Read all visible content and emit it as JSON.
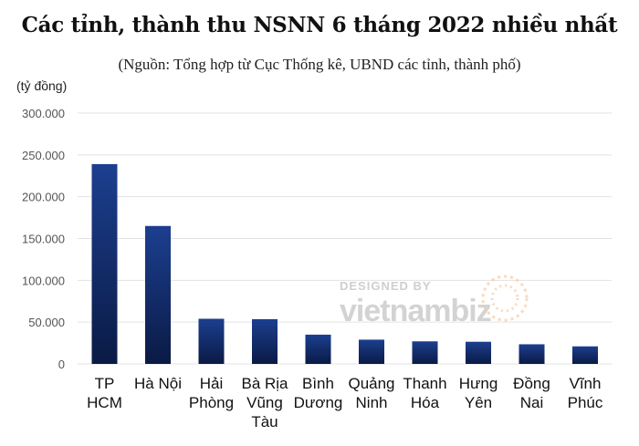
{
  "chart_data": {
    "type": "bar",
    "title": "Các tỉnh, thành thu NSNN 6 tháng 2022 nhiều nhất",
    "subtitle": "(Nguồn: Tổng hợp từ Cục Thống kê, UBND các tỉnh, thành phố)",
    "ylabel": "(tỷ đồng)",
    "ylim": [
      0,
      300000
    ],
    "yticks": [
      0,
      50000,
      100000,
      150000,
      200000,
      250000,
      300000
    ],
    "ytick_labels": [
      "0",
      "50.000",
      "100.000",
      "150.000",
      "200.000",
      "250.000",
      "300.000"
    ],
    "grid": true,
    "categories": [
      [
        "TP",
        "HCM"
      ],
      [
        "Hà Nội"
      ],
      [
        "Hải",
        "Phòng"
      ],
      [
        "Bà Rịa",
        "Vũng",
        "Tàu"
      ],
      [
        "Bình",
        "Dương"
      ],
      [
        "Quảng",
        "Ninh"
      ],
      [
        "Thanh",
        "Hóa"
      ],
      [
        "Hưng",
        "Yên"
      ],
      [
        "Đồng",
        "Nai"
      ],
      [
        "Vĩnh",
        "Phúc"
      ]
    ],
    "values": [
      239000,
      165000,
      54000,
      53500,
      35000,
      29000,
      27000,
      26500,
      23500,
      21000
    ],
    "colors": {
      "bar_top": "#1c3f8f",
      "bar_bottom": "#0a1a45",
      "grid": "#e3e3e3"
    }
  },
  "watermark": {
    "line1": "DESIGNED BY",
    "line2": "vietnambiz"
  }
}
